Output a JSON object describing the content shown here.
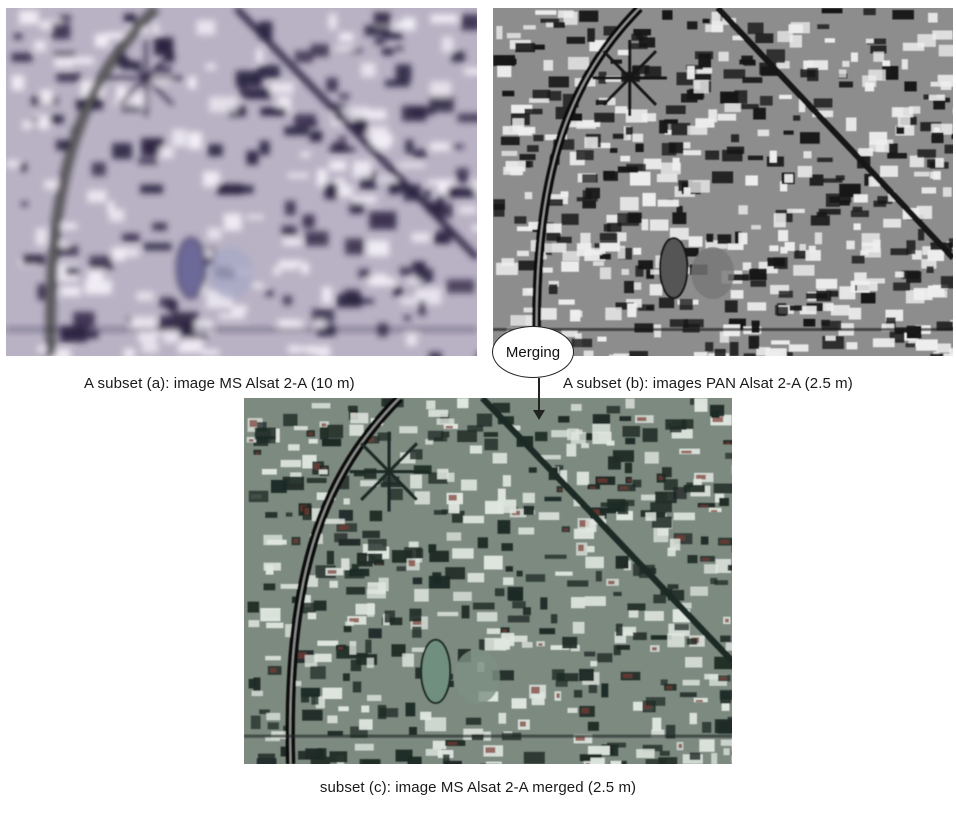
{
  "figure": {
    "bubble_label": "Merging",
    "panels": [
      {
        "id": "a",
        "caption": "A subset (a): image MS Alsat 2-A (10 m)",
        "style": "blurred-color"
      },
      {
        "id": "b",
        "caption": "A subset (b): images PAN Alsat 2-A (2.5 m)",
        "style": "grayscale"
      },
      {
        "id": "c",
        "caption": "subset (c): image MS Alsat 2-A merged (2.5 m)",
        "style": "fused-color"
      }
    ]
  },
  "colors": {
    "a_bg": "#b9b2c4",
    "a_dark": "#2a2240",
    "a_light": "#f2eef6",
    "b_bg": "#8d8d8d",
    "b_dark": "#151515",
    "b_light": "#eeeeee",
    "c_bg": "#7d8a80",
    "c_dark": "#1f2a25",
    "c_light": "#dfe6df",
    "c_red": "#7a3a32",
    "road": "#101010",
    "arrow": "#222222"
  }
}
